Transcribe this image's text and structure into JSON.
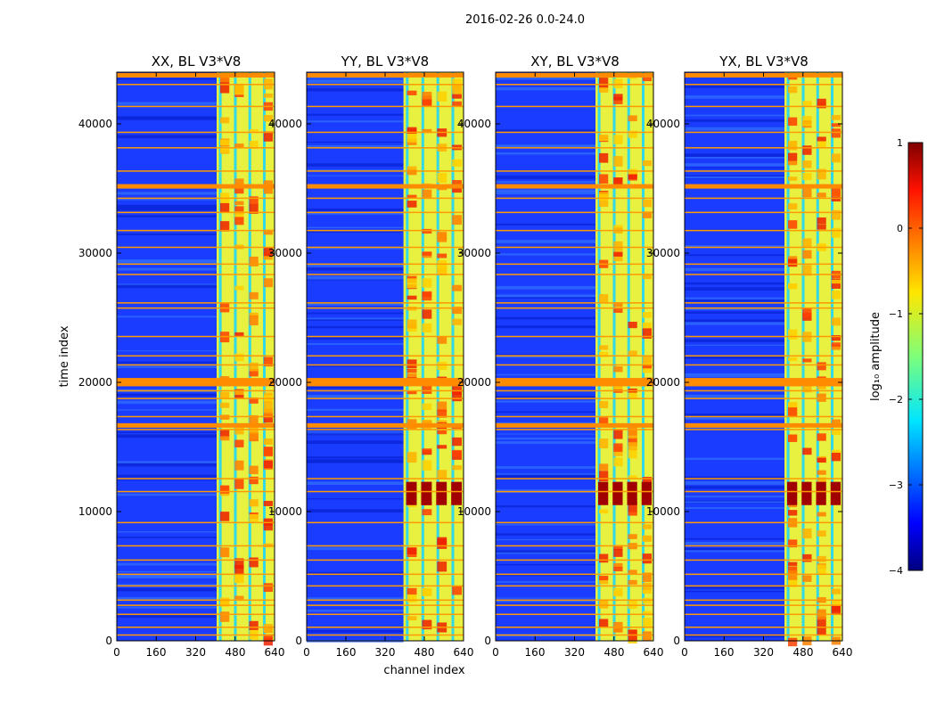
{
  "chart_data": {
    "type": "heatmap",
    "suptitle": "2016-02-26 0.0-24.0",
    "xlabel": "channel index",
    "ylabel": "time index",
    "xlim": [
      0,
      640
    ],
    "ylim": [
      0,
      44000
    ],
    "xticks": [
      "0",
      "160",
      "320",
      "480",
      "640"
    ],
    "yticks": [
      "0",
      "10000",
      "20000",
      "30000",
      "40000"
    ],
    "panels": [
      {
        "title": "XX, BL V3*V8",
        "rfi_start_channel": 405,
        "hot_spot": false
      },
      {
        "title": "YY, BL V3*V8",
        "rfi_start_channel": 395,
        "hot_spot": true
      },
      {
        "title": "XY, BL V3*V8",
        "rfi_start_channel": 405,
        "hot_spot": true
      },
      {
        "title": "YX, BL V3*V8",
        "rfi_start_channel": 405,
        "hot_spot": true
      }
    ],
    "colorbar": {
      "label": "log₁₀ amplitude",
      "range": [
        -4,
        1
      ],
      "ticks": [
        "1",
        "0",
        "−1",
        "−2",
        "−3",
        "−4"
      ],
      "colormap": "jet"
    },
    "flagged_rows": [
      500,
      1100,
      2100,
      2800,
      3200,
      4300,
      5200,
      6300,
      7400,
      9200,
      11600,
      12600,
      16400,
      16800,
      17400,
      18800,
      19400,
      20100,
      21400,
      22100,
      23600,
      25800,
      26200,
      28400,
      29200,
      30500,
      31800,
      33200,
      34300,
      35300,
      36400,
      38200,
      39400,
      41400,
      43100,
      43700
    ],
    "strong_flagged_rows": [
      16700,
      19900,
      20200,
      35200,
      43800
    ]
  }
}
